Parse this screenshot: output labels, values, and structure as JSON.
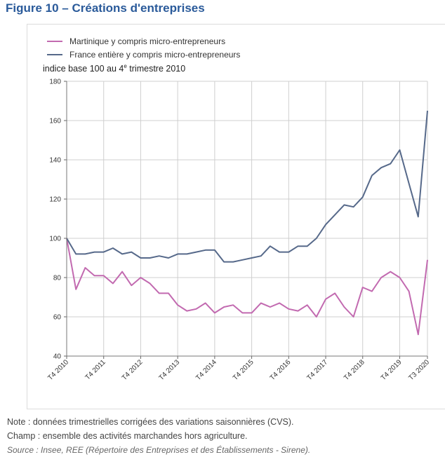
{
  "figure_title": "Figure 10 – Créations d'entreprises",
  "notes": {
    "note": "Note : données trimestrielles corrigées des variations saisonnières (CVS).",
    "champ": "Champ : ensemble des activités marchandes hors agriculture.",
    "source": "Source : Insee, REE (Répertoire des Entreprises et des Établissements - Sirene)."
  },
  "colors": {
    "martinique": "#c26ab0",
    "france": "#56698a",
    "title": "#2a5a9a",
    "grid": "#cfcfcf"
  },
  "chart_data": {
    "type": "line",
    "title": "",
    "ylabel": "indice base 100 au 4e trimestre 2010",
    "ylim": [
      40,
      180
    ],
    "yticks": [
      40,
      60,
      80,
      100,
      120,
      140,
      160,
      180
    ],
    "grid": true,
    "legend_position": "top-left",
    "x": [
      "T4 2010",
      "T1 2011",
      "T2 2011",
      "T3 2011",
      "T4 2011",
      "T1 2012",
      "T2 2012",
      "T3 2012",
      "T4 2012",
      "T1 2013",
      "T2 2013",
      "T3 2013",
      "T4 2013",
      "T1 2014",
      "T2 2014",
      "T3 2014",
      "T4 2014",
      "T1 2015",
      "T2 2015",
      "T3 2015",
      "T4 2015",
      "T1 2016",
      "T2 2016",
      "T3 2016",
      "T4 2016",
      "T1 2017",
      "T2 2017",
      "T3 2017",
      "T4 2017",
      "T1 2018",
      "T2 2018",
      "T3 2018",
      "T4 2018",
      "T1 2019",
      "T2 2019",
      "T3 2019",
      "T4 2019",
      "T1 2020",
      "T2 2020",
      "T3 2020"
    ],
    "x_tick_labels": [
      "T4 2010",
      "T4 2011",
      "T4 2012",
      "T4 2013",
      "T4 2014",
      "T4 2015",
      "T4 2016",
      "T4 2017",
      "T4 2018",
      "T4 2019",
      "T3 2020"
    ],
    "series": [
      {
        "name": "Martinique y compris micro-entrepreneurs",
        "values": [
          100,
          74,
          85,
          81,
          81,
          77,
          83,
          76,
          80,
          77,
          72,
          72,
          66,
          63,
          64,
          67,
          62,
          65,
          66,
          62,
          62,
          67,
          65,
          67,
          64,
          63,
          66,
          60,
          69,
          72,
          65,
          60,
          75,
          73,
          80,
          83,
          80,
          73,
          51,
          89
        ]
      },
      {
        "name": "France entière y compris micro-entrepreneurs",
        "values": [
          100,
          92,
          92,
          93,
          93,
          95,
          92,
          93,
          90,
          90,
          91,
          90,
          92,
          92,
          93,
          94,
          94,
          88,
          88,
          89,
          90,
          91,
          96,
          93,
          93,
          96,
          96,
          100,
          107,
          112,
          117,
          116,
          121,
          132,
          136,
          138,
          145,
          128,
          111,
          165
        ]
      }
    ]
  }
}
